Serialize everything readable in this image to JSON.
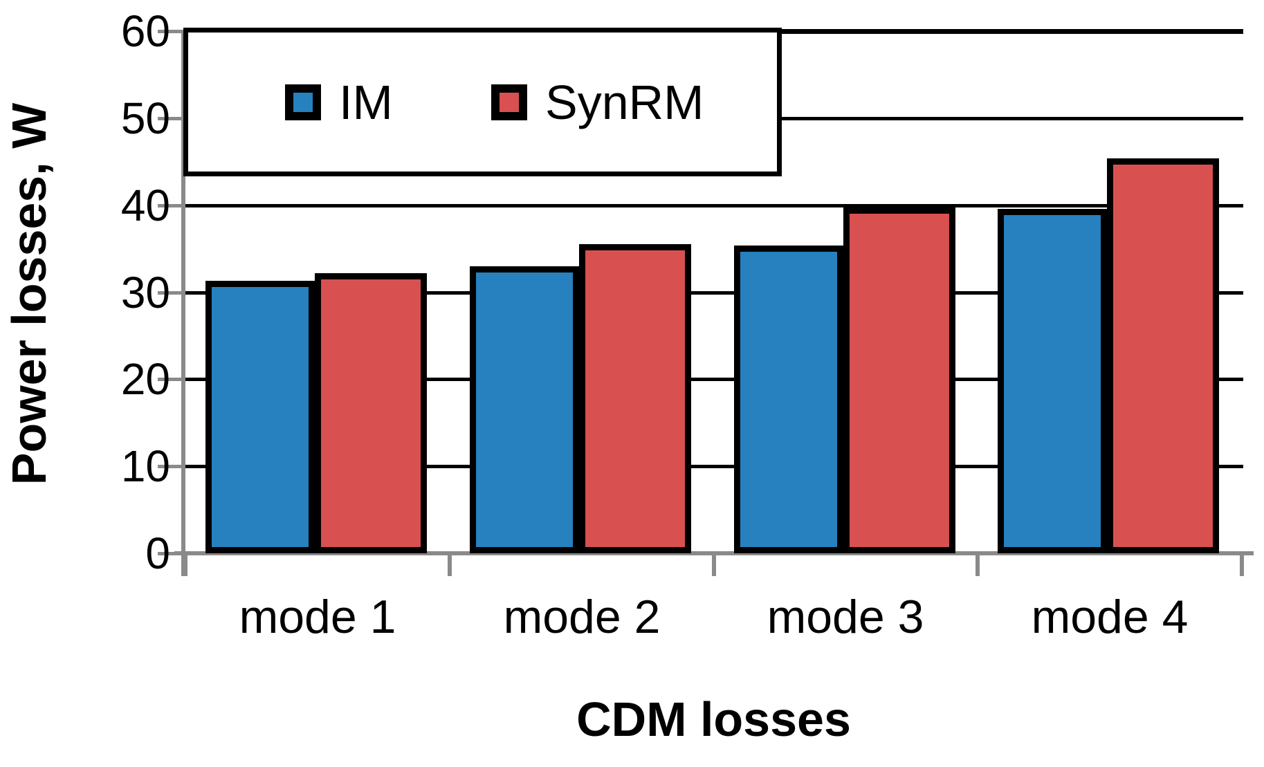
{
  "chart_data": {
    "type": "bar",
    "title": "",
    "xlabel": "CDM losses",
    "ylabel": "Power losses, W",
    "categories": [
      "mode 1",
      "mode 2",
      "mode 3",
      "mode 4"
    ],
    "series": [
      {
        "name": "IM",
        "color": "#2681BE",
        "values": [
          31.3,
          33.0,
          35.4,
          39.6
        ]
      },
      {
        "name": "SynRM",
        "color": "#D95050",
        "values": [
          32.2,
          35.5,
          39.7,
          45.4
        ]
      }
    ],
    "ylim": [
      0,
      60
    ],
    "yticks": [
      0,
      10,
      20,
      30,
      40,
      50,
      60
    ],
    "grid": "horizontal",
    "gridline_color": "#000000",
    "bar_border_color": "#000000",
    "axis_color": "#8a8a8a",
    "text_color": "#000000",
    "legend_position": "top-left-inside"
  }
}
